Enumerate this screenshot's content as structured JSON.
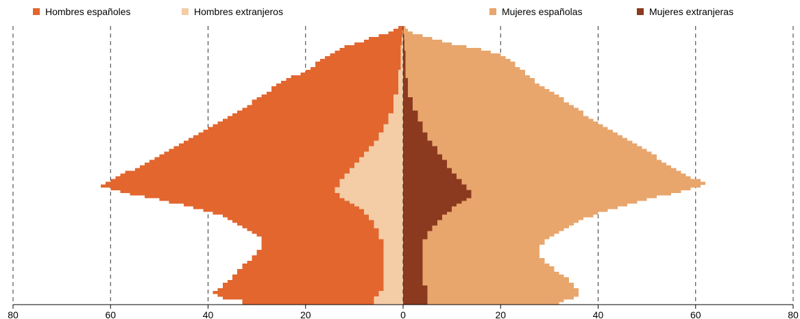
{
  "chart_data": {
    "type": "bar",
    "orientation": "horizontal population pyramid",
    "title": "",
    "xlabel": "",
    "ylabel": "",
    "xlim": [
      -80,
      80
    ],
    "x_ticks": [
      -80,
      -60,
      -40,
      -20,
      0,
      20,
      40,
      60,
      80
    ],
    "x_tick_labels": [
      "80",
      "60",
      "40",
      "20",
      "0",
      "20",
      "40",
      "60",
      "80"
    ],
    "grid": "vertical dashed lines",
    "legend_position": "top",
    "age_start": 0,
    "age_step": 1,
    "series": [
      {
        "name": "Hombres españoles",
        "color": "#e2662e",
        "side": "left",
        "stacked_outside": true,
        "values": [
          33,
          33,
          37,
          38,
          39,
          38,
          37,
          37,
          36,
          35,
          35,
          34,
          34,
          33,
          33,
          32,
          31,
          31,
          30,
          30,
          29,
          29,
          29,
          29,
          29,
          30,
          31,
          32,
          33,
          34,
          35,
          36,
          37,
          39,
          41,
          43,
          45,
          48,
          50,
          53,
          56,
          58,
          60,
          62,
          61,
          60,
          59,
          58,
          57,
          55,
          54,
          53,
          52,
          51,
          50,
          49,
          48,
          47,
          46,
          45,
          44,
          43,
          42,
          41,
          40,
          39,
          38,
          37,
          36,
          35,
          34,
          33,
          32,
          31,
          31,
          30,
          29,
          28,
          27,
          27,
          26,
          25,
          24,
          23,
          21,
          20,
          19,
          18,
          18,
          17,
          16,
          15,
          14,
          13,
          12,
          10,
          8,
          7,
          5,
          3,
          2,
          1
        ]
      },
      {
        "name": "Hombres extranjeros",
        "color": "#f4cca6",
        "side": "left",
        "stacked_outside": false,
        "values": [
          6,
          6,
          6,
          5,
          5,
          4,
          4,
          4,
          4,
          4,
          4,
          4,
          4,
          4,
          4,
          4,
          4,
          4,
          4,
          4,
          4,
          4,
          4,
          4,
          5,
          5,
          5,
          5,
          6,
          6,
          6,
          7,
          7,
          8,
          8,
          9,
          10,
          11,
          12,
          13,
          13,
          14,
          14,
          13,
          13,
          13,
          12,
          12,
          11,
          11,
          10,
          10,
          9,
          9,
          8,
          8,
          7,
          7,
          6,
          6,
          5,
          5,
          5,
          4,
          4,
          4,
          3,
          3,
          3,
          3,
          2,
          2,
          2,
          2,
          2,
          2,
          2,
          1,
          1,
          1,
          1,
          1,
          1,
          1,
          1,
          1,
          0.5,
          0.5,
          0.5,
          0.5,
          0.5,
          0.5,
          0.5,
          0.5,
          0.5,
          0.3,
          0.3,
          0.3,
          0.2,
          0.1,
          0.1,
          0.1
        ]
      },
      {
        "name": "Mujeres españolas",
        "color": "#e8a66d",
        "side": "right",
        "stacked_outside": true,
        "values": [
          32,
          33,
          35,
          36,
          36,
          36,
          35,
          35,
          34,
          34,
          33,
          32,
          31,
          31,
          30,
          29,
          29,
          28,
          28,
          28,
          28,
          28,
          29,
          29,
          30,
          31,
          32,
          33,
          34,
          35,
          36,
          37,
          39,
          40,
          42,
          44,
          46,
          48,
          50,
          52,
          55,
          57,
          59,
          61,
          62,
          61,
          59,
          58,
          57,
          56,
          55,
          54,
          53,
          52,
          52,
          51,
          50,
          49,
          48,
          47,
          46,
          45,
          44,
          43,
          42,
          41,
          40,
          39,
          38,
          37,
          37,
          36,
          35,
          34,
          33,
          33,
          32,
          31,
          30,
          29,
          28,
          27,
          27,
          26,
          25,
          25,
          24,
          23,
          23,
          22,
          21,
          20,
          18,
          16,
          13,
          10,
          8,
          6,
          4,
          2,
          1,
          0.5
        ]
      },
      {
        "name": "Mujeres extranjeras",
        "color": "#8b3a1f",
        "side": "right",
        "stacked_outside": false,
        "values": [
          5,
          5,
          5,
          5,
          5,
          5,
          5,
          4,
          4,
          4,
          4,
          4,
          4,
          4,
          4,
          4,
          4,
          4,
          4,
          4,
          4,
          4,
          4,
          4,
          5,
          5,
          5,
          6,
          6,
          7,
          7,
          8,
          8,
          9,
          10,
          10,
          11,
          12,
          13,
          14,
          14,
          14,
          13,
          13,
          12,
          12,
          11,
          11,
          10,
          10,
          9,
          9,
          9,
          8,
          8,
          7,
          7,
          7,
          6,
          6,
          5,
          5,
          5,
          4,
          4,
          4,
          4,
          3,
          3,
          3,
          3,
          2,
          2,
          2,
          2,
          2,
          1,
          1,
          1,
          1,
          1,
          1,
          1,
          0.5,
          0.5,
          0.5,
          0.5,
          0.5,
          0.5,
          0.5,
          0.5,
          0.5,
          0.5,
          0.3,
          0.3,
          0.3,
          0.3,
          0.2,
          0.2,
          0.1,
          0.1,
          0.1
        ]
      }
    ]
  }
}
